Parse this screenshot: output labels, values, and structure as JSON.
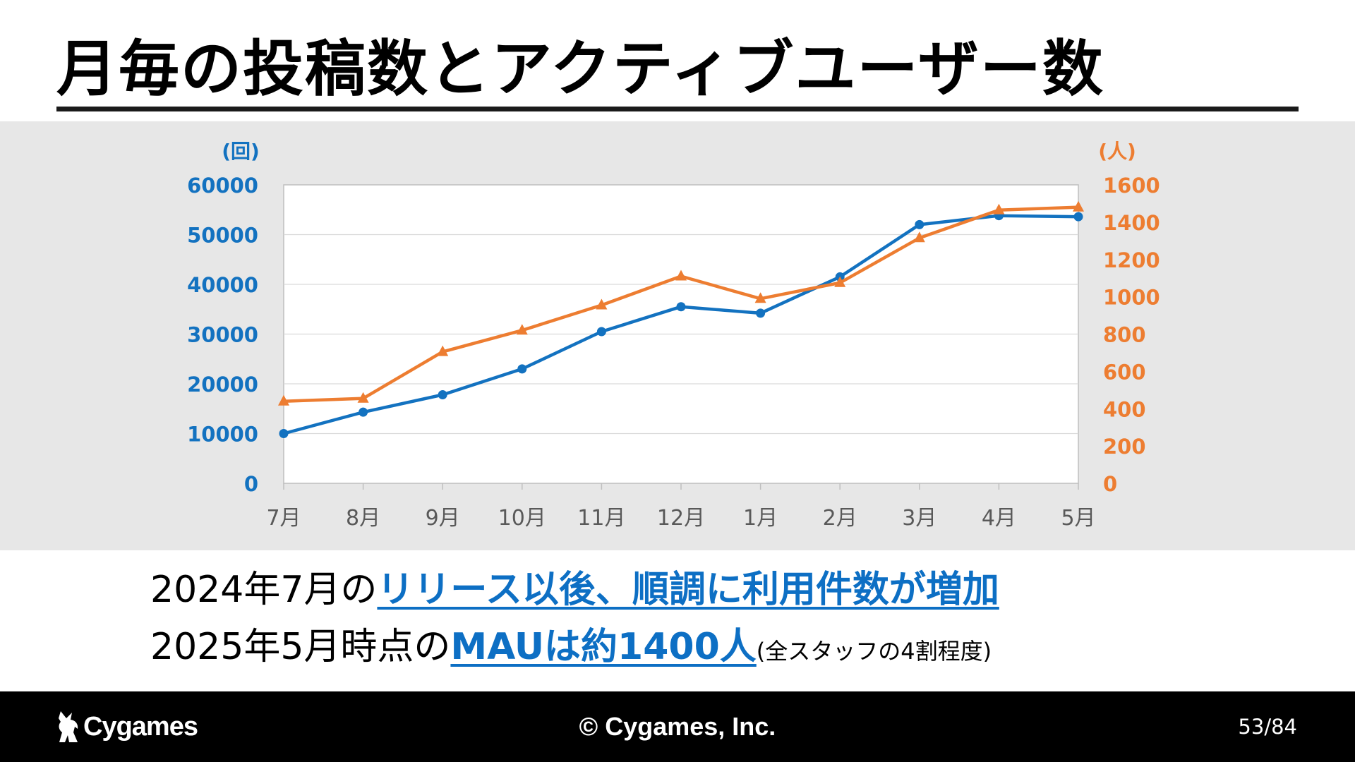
{
  "slide": {
    "title": "月毎の投稿数とアクティブユーザー数"
  },
  "chart_data": {
    "type": "line",
    "categories": [
      "7月",
      "8月",
      "9月",
      "10月",
      "11月",
      "12月",
      "1月",
      "2月",
      "3月",
      "4月",
      "5月"
    ],
    "y_left": {
      "unit_label": "(回)",
      "ylim": [
        0,
        60000
      ],
      "ticks": [
        "0",
        "10000",
        "20000",
        "30000",
        "40000",
        "50000",
        "60000"
      ],
      "color": "#1372c0"
    },
    "y_right": {
      "unit_label": "(人)",
      "ylim": [
        0,
        1600
      ],
      "ticks": [
        "0",
        "200",
        "400",
        "600",
        "800",
        "1000",
        "1200",
        "1400",
        "1600"
      ],
      "color": "#ed7d31"
    },
    "series": [
      {
        "axis": "left",
        "marker": "circle",
        "color": "#1372c0",
        "values": [
          10000,
          14300,
          17800,
          23000,
          30500,
          35500,
          34200,
          41500,
          52000,
          53800,
          53600
        ]
      },
      {
        "axis": "right",
        "marker": "triangle",
        "color": "#ed7d31",
        "values": [
          440,
          455,
          705,
          820,
          955,
          1110,
          990,
          1075,
          1315,
          1465,
          1480
        ]
      }
    ],
    "grid": true,
    "legend": "none"
  },
  "summary": {
    "line1_prefix": "2024年7月の",
    "line1_highlight": "リリース以後、順調に利用件数が増加",
    "line2_prefix": "2025年5月時点の",
    "line2_highlight": "MAUは約1400人",
    "line2_note": "(全スタッフの4割程度)"
  },
  "footer": {
    "logo_text": "Cygames",
    "copyright": "© Cygames, Inc.",
    "page_current": "53",
    "page_total": "/84"
  },
  "colors": {
    "accent_blue": "#0d6fc4",
    "accent_orange": "#ed7d31",
    "band_gray": "#e7e7e7"
  }
}
